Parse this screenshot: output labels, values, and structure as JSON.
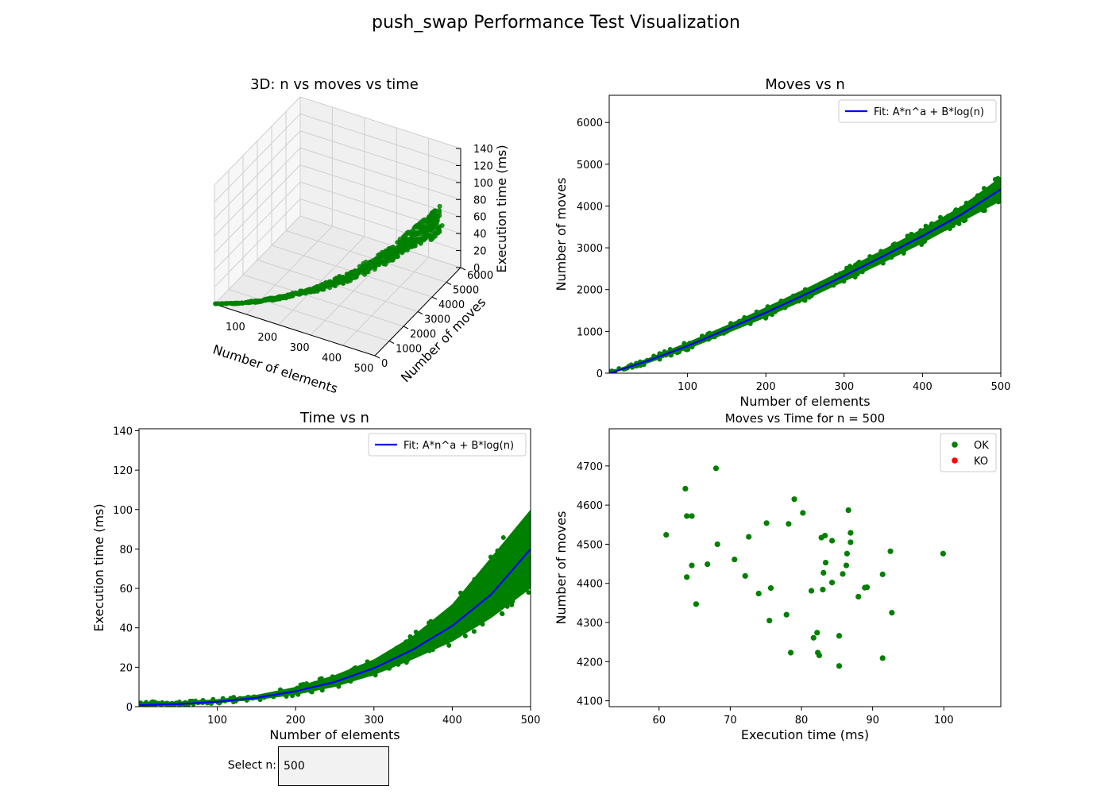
{
  "figure": {
    "suptitle": "push_swap Performance Test Visualization"
  },
  "widget": {
    "label": "Select n:",
    "value": "500"
  },
  "chart_data": [
    {
      "type": "scatter",
      "title": "3D: n vs moves vs time",
      "xlabel": "Number of elements",
      "ylabel": "Number of moves",
      "zlabel": "Execution time (ms)",
      "xlim": [
        0,
        500
      ],
      "ylim": [
        0,
        6000
      ],
      "zlim": [
        0,
        140
      ],
      "xticks": [
        100,
        200,
        300,
        400,
        500
      ],
      "yticks": [
        0,
        1000,
        2000,
        3000,
        4000,
        5000,
        6000
      ],
      "zticks": [
        0,
        20,
        40,
        60,
        80,
        100,
        120,
        140
      ],
      "color": "#008000",
      "trend": {
        "x": [
          1,
          50,
          100,
          150,
          200,
          250,
          300,
          350,
          400,
          450,
          500
        ],
        "y": [
          0,
          330,
          750,
          1200,
          1690,
          2210,
          2750,
          3310,
          3880,
          4460,
          4400
        ],
        "z": [
          0.5,
          1.2,
          2.5,
          4.8,
          8.5,
          14,
          22,
          33,
          47,
          64,
          82
        ]
      }
    },
    {
      "type": "scatter",
      "title": "Moves vs n",
      "xlabel": "Number of elements",
      "ylabel": "Number of moves",
      "xlim": [
        0,
        500
      ],
      "ylim": [
        0,
        6650
      ],
      "xticks": [
        100,
        200,
        300,
        400,
        500
      ],
      "yticks": [
        0,
        1000,
        2000,
        3000,
        4000,
        5000,
        6000
      ],
      "legend": [
        "Fit: A*n^a + B*log(n)"
      ],
      "legend_position": "top-right",
      "points_color": "#008000",
      "fit_color": "#0000ff",
      "fit": {
        "x": [
          1,
          50,
          100,
          150,
          200,
          250,
          300,
          350,
          400,
          450,
          500
        ],
        "y": [
          0,
          300,
          650,
          1050,
          1450,
          1880,
          2330,
          2800,
          3280,
          3800,
          4400
        ]
      },
      "band": {
        "x": [
          1,
          50,
          100,
          150,
          200,
          250,
          300,
          350,
          400,
          450,
          500
        ],
        "low": [
          0,
          240,
          570,
          950,
          1330,
          1750,
          2190,
          2640,
          3110,
          3620,
          4120
        ],
        "high": [
          40,
          360,
          740,
          1150,
          1580,
          2020,
          2480,
          2960,
          3460,
          4000,
          4700
        ]
      }
    },
    {
      "type": "scatter",
      "title": "Time vs n",
      "xlabel": "Number of elements",
      "ylabel": "Execution time (ms)",
      "xlim": [
        0,
        500
      ],
      "ylim": [
        0,
        141
      ],
      "xticks": [
        100,
        200,
        300,
        400,
        500
      ],
      "yticks": [
        0,
        20,
        40,
        60,
        80,
        100,
        120,
        140
      ],
      "legend": [
        "Fit: A*n^a + B*log(n)"
      ],
      "legend_position": "top-right",
      "points_color": "#008000",
      "fit_color": "#0000ff",
      "fit": {
        "x": [
          1,
          50,
          100,
          150,
          200,
          250,
          300,
          350,
          400,
          450,
          500
        ],
        "y": [
          0.8,
          1.3,
          2.5,
          4.5,
          7.8,
          12.5,
          19.5,
          29,
          41,
          57,
          80
        ]
      },
      "band": {
        "x": [
          1,
          50,
          100,
          150,
          200,
          250,
          300,
          350,
          400,
          450,
          500
        ],
        "low": [
          0,
          0.8,
          1.8,
          3.4,
          6,
          10,
          16,
          24,
          33,
          45,
          60
        ],
        "high": [
          2.5,
          2.5,
          3.8,
          6,
          10,
          16,
          24,
          36,
          52,
          76,
          100
        ]
      }
    },
    {
      "type": "scatter",
      "title": "Moves vs Time for n = 500",
      "xlabel": "Execution time (ms)",
      "ylabel": "Number of moves",
      "xlim": [
        53,
        108
      ],
      "ylim": [
        4085,
        4795
      ],
      "xticks": [
        60,
        70,
        80,
        90,
        100
      ],
      "yticks": [
        4100,
        4200,
        4300,
        4400,
        4500,
        4600,
        4700
      ],
      "legend": [
        "OK",
        "KO"
      ],
      "legend_colors": [
        "#008000",
        "#ff0000"
      ],
      "legend_position": "top-right",
      "points": [
        [
          61,
          4524
        ],
        [
          63.7,
          4642
        ],
        [
          63.9,
          4572
        ],
        [
          64.6,
          4572
        ],
        [
          63.9,
          4416
        ],
        [
          64.6,
          4446
        ],
        [
          65.2,
          4347
        ],
        [
          66.8,
          4449
        ],
        [
          68.0,
          4694
        ],
        [
          68.2,
          4500
        ],
        [
          70.6,
          4461
        ],
        [
          72.1,
          4419
        ],
        [
          72.6,
          4519
        ],
        [
          74.0,
          4374
        ],
        [
          75.1,
          4554
        ],
        [
          75.5,
          4305
        ],
        [
          75.7,
          4388
        ],
        [
          77.9,
          4320
        ],
        [
          78.2,
          4552
        ],
        [
          78.5,
          4223
        ],
        [
          79.0,
          4615
        ],
        [
          80.2,
          4580
        ],
        [
          81.4,
          4381
        ],
        [
          81.7,
          4261
        ],
        [
          82.2,
          4274
        ],
        [
          82.3,
          4223
        ],
        [
          82.5,
          4216
        ],
        [
          82.8,
          4517
        ],
        [
          83.0,
          4384
        ],
        [
          83.1,
          4427
        ],
        [
          83.3,
          4522
        ],
        [
          83.4,
          4453
        ],
        [
          84.3,
          4402
        ],
        [
          84.3,
          4509
        ],
        [
          85.3,
          4266
        ],
        [
          85.3,
          4189
        ],
        [
          85.8,
          4424
        ],
        [
          86.3,
          4446
        ],
        [
          86.4,
          4476
        ],
        [
          86.6,
          4587
        ],
        [
          86.9,
          4505
        ],
        [
          86.9,
          4529
        ],
        [
          88.0,
          4366
        ],
        [
          88.9,
          4389
        ],
        [
          89.2,
          4390
        ],
        [
          91.4,
          4423
        ],
        [
          91.4,
          4209
        ],
        [
          92.5,
          4482
        ],
        [
          92.7,
          4325
        ],
        [
          99.9,
          4476
        ]
      ]
    }
  ]
}
